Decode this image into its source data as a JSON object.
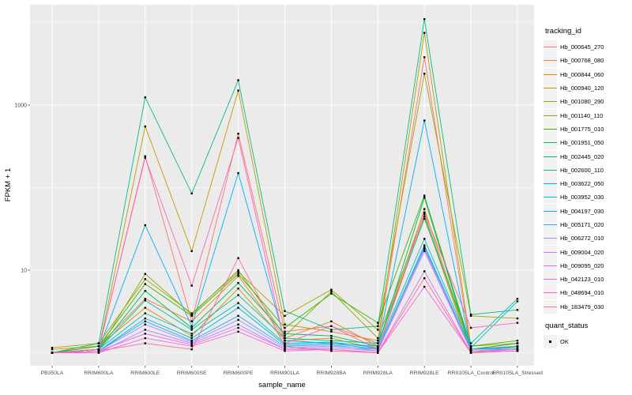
{
  "chart_data": {
    "type": "line",
    "xlabel": "sample_name",
    "ylabel": "FPKM + 1",
    "y_scale": "log10",
    "ylim": [
      0.7,
      14000
    ],
    "grid": true,
    "panel_bg": "#EBEBEB",
    "grid_color": "#FFFFFF",
    "point_color": "#000000",
    "tick_label_color": "#4D4D4D",
    "y_ticks": [
      {
        "v": 10,
        "label": "10"
      },
      {
        "v": 1000,
        "label": "1000"
      }
    ],
    "y_minor": [
      1,
      100,
      10000
    ],
    "categories": [
      "PB350LA",
      "RRIM600LA",
      "RRIM600LE",
      "RRIM600SE",
      "RRIM600PE",
      "RRIM901LA",
      "RRIM928BA",
      "RRIM928LA",
      "RRIM928LE",
      "RRII105LA_Control",
      "RRII105LA_Stressed"
    ],
    "legend": {
      "title": "tracking_id",
      "position": "right"
    },
    "quant_status": {
      "title": "quant_status",
      "items": [
        {
          "label": "OK",
          "shape": "square",
          "color": "#000000"
        }
      ]
    },
    "series": [
      {
        "name": "Hb_000645_270",
        "color": "#F8766D",
        "values": [
          1.0,
          1.1,
          240,
          2.4,
          450,
          1.8,
          2.1,
          1.3,
          3800,
          1.1,
          1.2
        ]
      },
      {
        "name": "Hb_000768_080",
        "color": "#EA8331",
        "values": [
          1.0,
          1.2,
          4.5,
          2.4,
          8.5,
          1.5,
          2.4,
          1.2,
          55,
          1.1,
          1.3
        ]
      },
      {
        "name": "Hb_000844_060",
        "color": "#D89000",
        "values": [
          1.1,
          1.2,
          3.5,
          1.6,
          6.0,
          1.4,
          1.5,
          1.1,
          45,
          1.0,
          1.2
        ]
      },
      {
        "name": "Hb_000940_120",
        "color": "#C09B00",
        "values": [
          1.0,
          1.1,
          550,
          17,
          1500,
          2.2,
          1.8,
          1.4,
          7500,
          1.2,
          1.3
        ]
      },
      {
        "name": "Hb_001080_290",
        "color": "#A3A500",
        "values": [
          1.15,
          1.3,
          7.8,
          3.0,
          9.5,
          2.8,
          5.8,
          1.9,
          2400,
          2.8,
          2.6
        ]
      },
      {
        "name": "Hb_001140_110",
        "color": "#7CAE00",
        "values": [
          1.0,
          1.1,
          9.0,
          2.9,
          10,
          1.6,
          5.5,
          1.5,
          48,
          1.1,
          1.2
        ]
      },
      {
        "name": "Hb_001775_010",
        "color": "#39B600",
        "values": [
          1.0,
          1.2,
          6.8,
          2.8,
          9.0,
          2.0,
          5.2,
          2.3,
          80,
          1.2,
          1.4
        ]
      },
      {
        "name": "Hb_001951_050",
        "color": "#00BB4E",
        "values": [
          1.0,
          1.1,
          5.6,
          2.0,
          7.0,
          1.7,
          1.6,
          1.2,
          76,
          1.1,
          1.3
        ]
      },
      {
        "name": "Hb_002445_020",
        "color": "#00BF7D",
        "values": [
          1.0,
          1.3,
          1240,
          85,
          2000,
          3.2,
          1.9,
          2.1,
          11000,
          2.9,
          3.3
        ]
      },
      {
        "name": "Hb_002600_110",
        "color": "#00C1A3",
        "values": [
          1.0,
          1.1,
          4.3,
          1.9,
          5.0,
          1.5,
          1.4,
          1.3,
          42,
          1.3,
          4.5
        ]
      },
      {
        "name": "Hb_003622_050",
        "color": "#00BFC4",
        "values": [
          1.0,
          1.1,
          3.0,
          1.7,
          4.0,
          1.3,
          1.35,
          1.15,
          24,
          1.15,
          4.2
        ]
      },
      {
        "name": "Hb_003952_030",
        "color": "#00BAE0",
        "values": [
          1.0,
          1.05,
          2.6,
          1.5,
          3.5,
          1.25,
          1.3,
          1.1,
          20,
          1.1,
          1.2
        ]
      },
      {
        "name": "Hb_004197_030",
        "color": "#00B0F6",
        "values": [
          1.0,
          1.1,
          35,
          2.1,
          150,
          1.4,
          1.3,
          1.2,
          650,
          1.1,
          1.15
        ]
      },
      {
        "name": "Hb_005171_020",
        "color": "#35A2FF",
        "values": [
          1.0,
          1.05,
          2.4,
          1.4,
          2.8,
          1.2,
          1.25,
          1.05,
          19,
          1.05,
          1.1
        ]
      },
      {
        "name": "Hb_006272_010",
        "color": "#9590FF",
        "values": [
          1.0,
          1.05,
          2.2,
          1.35,
          2.5,
          1.15,
          1.2,
          1.1,
          18,
          1.1,
          1.1
        ]
      },
      {
        "name": "Hb_009004_020",
        "color": "#C77CFF",
        "values": [
          1.0,
          1.0,
          1.9,
          1.3,
          2.2,
          1.1,
          1.15,
          1.05,
          17,
          1.05,
          1.1
        ]
      },
      {
        "name": "Hb_009095_020",
        "color": "#E76BF3",
        "values": [
          1.0,
          1.05,
          1.7,
          1.25,
          2.0,
          1.1,
          1.1,
          1.0,
          9.7,
          1.0,
          1.05
        ]
      },
      {
        "name": "Hb_042123_010",
        "color": "#FA62DB",
        "values": [
          1.0,
          1.0,
          1.5,
          1.2,
          1.8,
          1.05,
          1.1,
          1.0,
          6.3,
          1.0,
          1.05
        ]
      },
      {
        "name": "Hb_048694_010",
        "color": "#FF62BC",
        "values": [
          1.0,
          1.1,
          230,
          6.5,
          400,
          1.3,
          2.1,
          1.1,
          50,
          2.0,
          2.3
        ]
      },
      {
        "name": "Hb_183479_030",
        "color": "#FF6A98",
        "values": [
          1.0,
          1.05,
          1.3,
          1.1,
          14,
          1.2,
          1.05,
          1.0,
          8.0,
          1.0,
          1.1
        ]
      }
    ]
  }
}
